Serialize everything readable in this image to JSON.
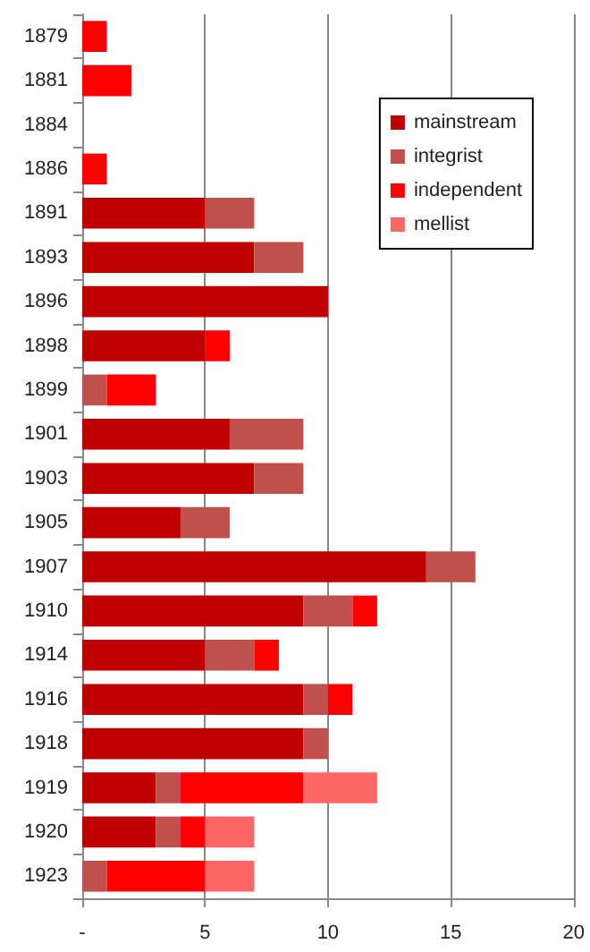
{
  "chart_data": {
    "type": "bar",
    "orientation": "horizontal",
    "stacked": true,
    "categories": [
      "1879",
      "1881",
      "1884",
      "1886",
      "1891",
      "1893",
      "1896",
      "1898",
      "1899",
      "1901",
      "1903",
      "1905",
      "1907",
      "1910",
      "1914",
      "1916",
      "1918",
      "1919",
      "1920",
      "1923"
    ],
    "series": [
      {
        "name": "mainstream",
        "color": "#c00000",
        "values": [
          null,
          null,
          null,
          null,
          5,
          7,
          10,
          5,
          null,
          6,
          7,
          4,
          14,
          9,
          5,
          9,
          9,
          3,
          3,
          null
        ]
      },
      {
        "name": "integrist",
        "color": "#c0504d",
        "values": [
          null,
          null,
          null,
          null,
          2,
          2,
          null,
          null,
          1,
          3,
          2,
          2,
          2,
          2,
          2,
          1,
          1,
          1,
          1,
          1
        ]
      },
      {
        "name": "independent",
        "color": "#ff0000",
        "values": [
          1,
          2,
          null,
          1,
          null,
          null,
          null,
          1,
          2,
          null,
          null,
          null,
          null,
          1,
          1,
          1,
          null,
          5,
          1,
          4
        ]
      },
      {
        "name": "mellist",
        "color": "#ff6666",
        "values": [
          null,
          null,
          null,
          null,
          null,
          null,
          null,
          null,
          null,
          null,
          null,
          null,
          null,
          null,
          null,
          null,
          null,
          3,
          2,
          2
        ]
      }
    ],
    "xlim": [
      0,
      20
    ],
    "xticks": [
      {
        "value": 0,
        "label": "-"
      },
      5,
      10,
      15,
      20
    ],
    "grid": "x",
    "legend": "top right"
  }
}
